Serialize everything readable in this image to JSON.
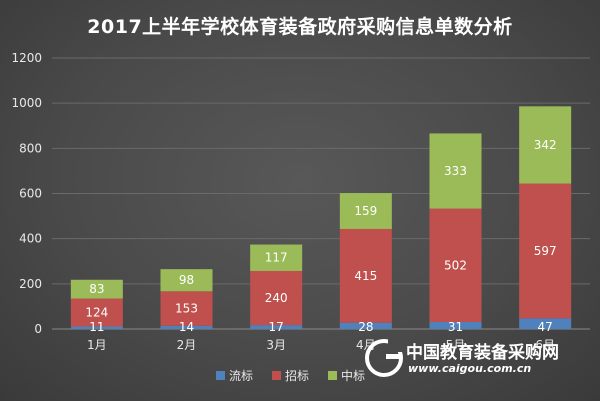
{
  "colors": {
    "series_1": "#4f81bd",
    "series_2": "#c0504d",
    "series_3": "#9bbb59",
    "gridline": "#6a6a6a",
    "axis": "#8a8a8a"
  },
  "chart_data": {
    "type": "bar",
    "stacked": true,
    "title": "2017上半年学校体育装备政府采购信息单数分析",
    "xlabel": "",
    "ylabel": "",
    "categories": [
      "1月",
      "2月",
      "3月",
      "4月",
      "5月",
      "6月"
    ],
    "series": [
      {
        "name": "流标",
        "values": [
          11,
          14,
          17,
          28,
          31,
          47
        ]
      },
      {
        "name": "招标",
        "values": [
          124,
          153,
          240,
          415,
          502,
          597
        ]
      },
      {
        "name": "中标",
        "values": [
          83,
          98,
          117,
          159,
          333,
          342
        ]
      }
    ],
    "ylim": [
      0,
      1200
    ],
    "yticks": [
      0,
      200,
      400,
      600,
      800,
      1000,
      1200
    ],
    "grid": true,
    "legend_position": "bottom"
  },
  "watermark": {
    "name": "中国教育装备采购网",
    "url": "www.caigou.com.cn"
  }
}
